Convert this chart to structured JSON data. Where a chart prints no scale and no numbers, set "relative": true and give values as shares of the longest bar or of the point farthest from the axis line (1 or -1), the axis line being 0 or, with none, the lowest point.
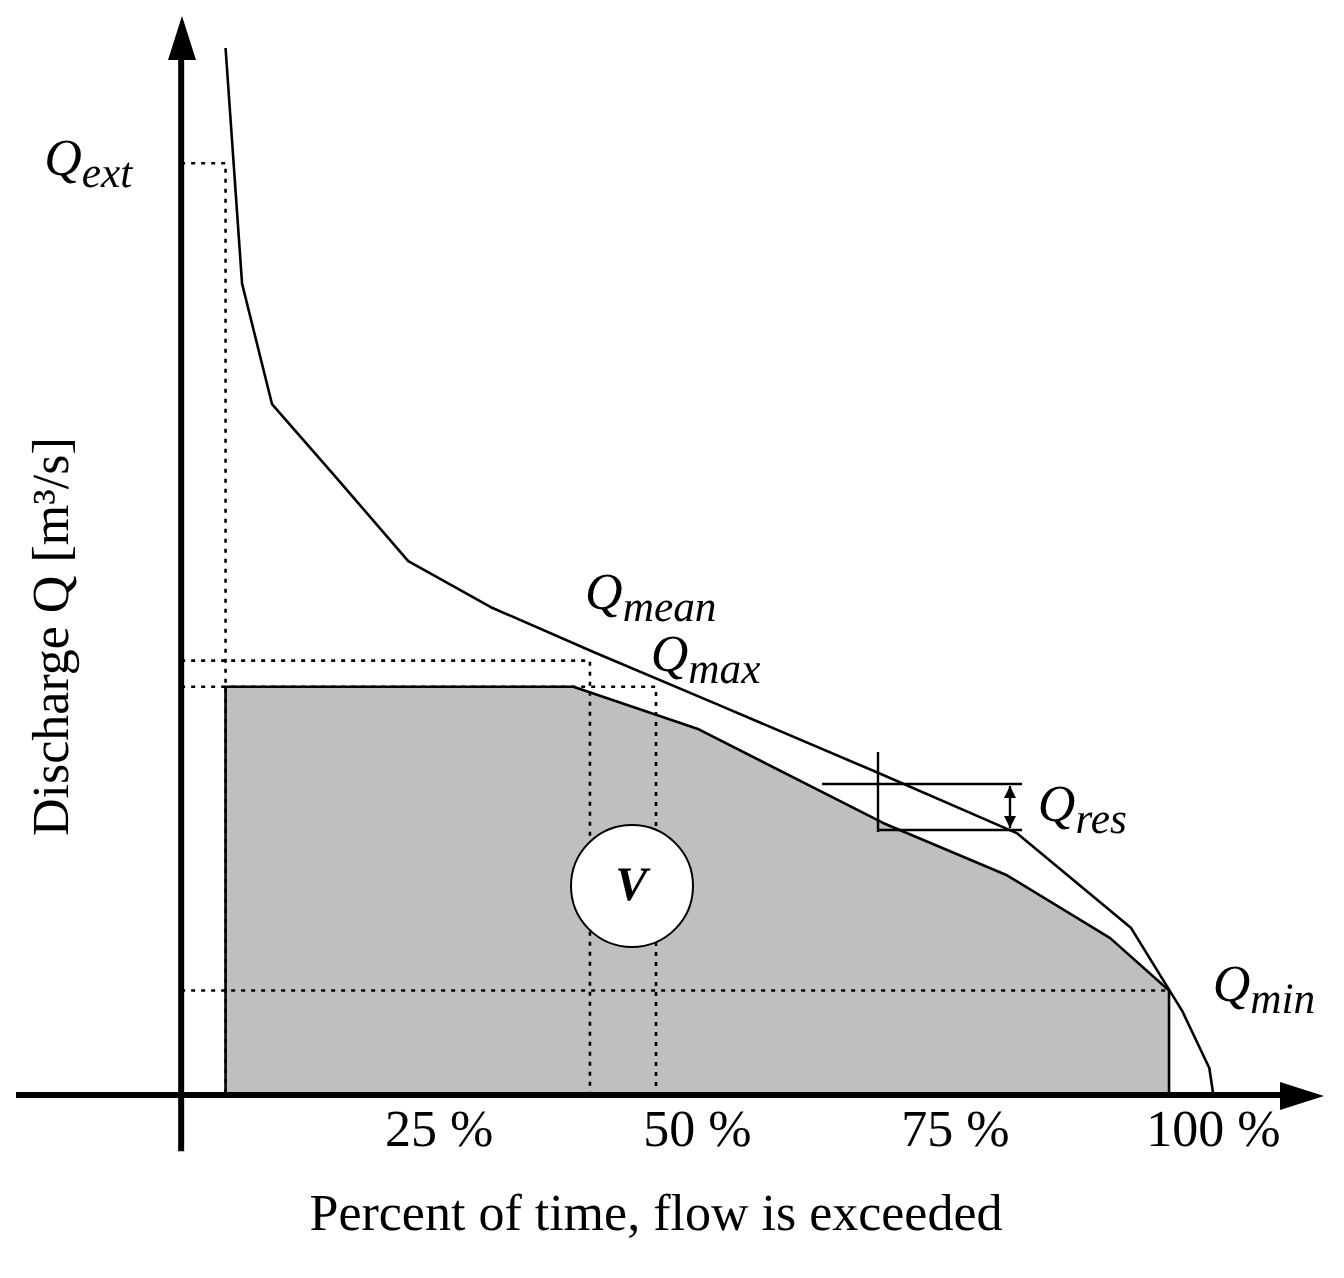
{
  "chart_data": {
    "type": "line",
    "relative": true,
    "xlabel": "Percent of time, flow is exceeded",
    "ylabel": "Discharge Q [m³/s]",
    "xlim": [
      -16,
      108
    ],
    "xticks": [
      {
        "value": 25,
        "label": "25 %"
      },
      {
        "value": 50,
        "label": "50 %"
      },
      {
        "value": 75,
        "label": "75 %"
      },
      {
        "value": 100,
        "label": "100 %"
      }
    ],
    "grid": false,
    "legend": false,
    "marker": "none",
    "series": [
      {
        "type": "area",
        "color": "#000000",
        "x": [
          4.3,
          4.3,
          38,
          50,
          68,
          80,
          90,
          95.7,
          95.7
        ],
        "values": [
          0,
          0.39,
          0.39,
          0.35,
          0.26,
          0.21,
          0.15,
          0.1,
          0
        ]
      },
      {
        "type": "line",
        "color": "#000000",
        "line_style": "solid",
        "x": [
          4.3,
          5.9,
          8.8,
          15,
          22,
          30,
          40,
          52,
          67,
          81,
          92,
          97,
          99.6,
          100
        ],
        "values": [
          1,
          0.775,
          0.66,
          0.59,
          0.51,
          0.466,
          0.423,
          0.373,
          0.31,
          0.25,
          0.16,
          0.08,
          0.026,
          0
        ]
      },
      {
        "type": "line",
        "color": "#000000",
        "line_style": "dotted",
        "x": [
          0,
          4.3,
          4.3
        ],
        "values": [
          0.89,
          0.89,
          0
        ]
      },
      {
        "type": "line",
        "color": "#000000",
        "line_style": "dotted",
        "x": [
          0,
          39.6,
          39.6
        ],
        "values": [
          0.415,
          0.415,
          0
        ]
      },
      {
        "type": "line",
        "color": "#000000",
        "line_style": "dotted",
        "x": [
          0,
          46,
          46
        ],
        "values": [
          0.39,
          0.39,
          0
        ]
      },
      {
        "type": "line",
        "color": "#000000",
        "line_style": "dotted",
        "x": [
          0,
          95.7
        ],
        "values": [
          0.1,
          0.1
        ]
      }
    ],
    "annotations": [
      "Q$_{ext}$",
      "Q$_{mean}$",
      "Q$_{max}$",
      "Q$_{res}$",
      "Q$_{min}$",
      "V"
    ]
  }
}
